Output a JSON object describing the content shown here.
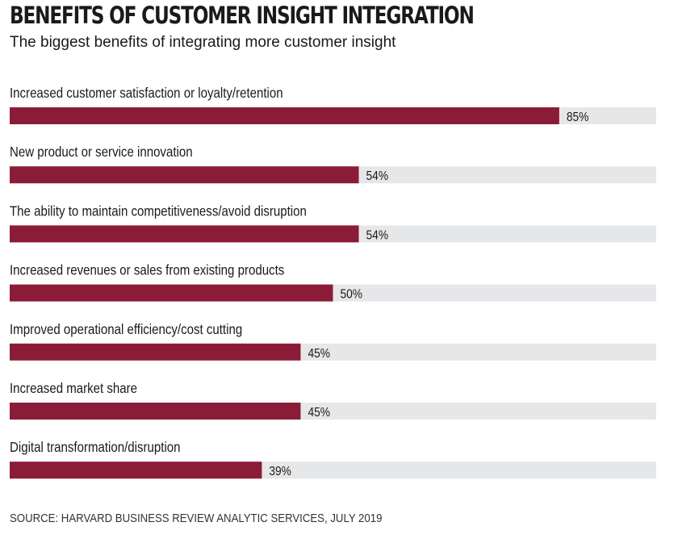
{
  "header": {
    "title": "BENEFITS OF CUSTOMER INSIGHT INTEGRATION",
    "subtitle": "The biggest benefits of integrating more customer insight"
  },
  "footer": {
    "source": "SOURCE: HARVARD BUSINESS REVIEW ANALYTIC SERVICES, JULY 2019"
  },
  "colors": {
    "bar": "#8b1c38",
    "track": "#e6e7e8",
    "text": "#1a1a1a"
  },
  "chart_data": {
    "type": "bar",
    "orientation": "horizontal",
    "title": "BENEFITS OF CUSTOMER INSIGHT INTEGRATION",
    "subtitle": "The biggest benefits of integrating more customer insight",
    "categories": [
      "Increased customer satisfaction or loyalty/retention",
      "New product or service innovation",
      "The ability to maintain competitiveness/avoid disruption",
      "Increased revenues or sales from existing products",
      "Improved operational efficiency/cost cutting",
      "Increased market share",
      "Digital transformation/disruption"
    ],
    "values": [
      85,
      54,
      54,
      50,
      45,
      45,
      39
    ],
    "value_labels": [
      "85%",
      "54%",
      "54%",
      "50%",
      "45%",
      "45%",
      "39%"
    ],
    "xlim": [
      0,
      100
    ],
    "unit": "%",
    "grid": false,
    "legend": "none"
  }
}
